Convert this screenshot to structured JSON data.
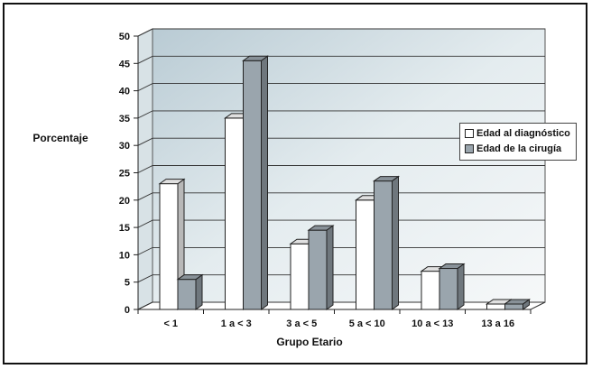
{
  "chart_data": {
    "type": "bar",
    "xlabel": "Grupo Etario",
    "ylabel": "Porcentaje",
    "ylim": [
      0,
      50
    ],
    "yticks": [
      0,
      5,
      10,
      15,
      20,
      25,
      30,
      35,
      40,
      45,
      50
    ],
    "grid": true,
    "legend_position": "right",
    "categories": [
      "< 1",
      "1 a < 3",
      "3 a < 5",
      "5 a < 10",
      "10 a < 13",
      "13 a 16"
    ],
    "series": [
      {
        "name": "Edad al diagnóstico",
        "values": [
          23,
          35,
          12,
          20,
          7,
          1
        ],
        "color": "#ffffff"
      },
      {
        "name": "Edad de la cirugía",
        "values": [
          5.5,
          45.5,
          14.5,
          23.5,
          7.5,
          1
        ],
        "color": "#9aa5ad"
      }
    ]
  }
}
